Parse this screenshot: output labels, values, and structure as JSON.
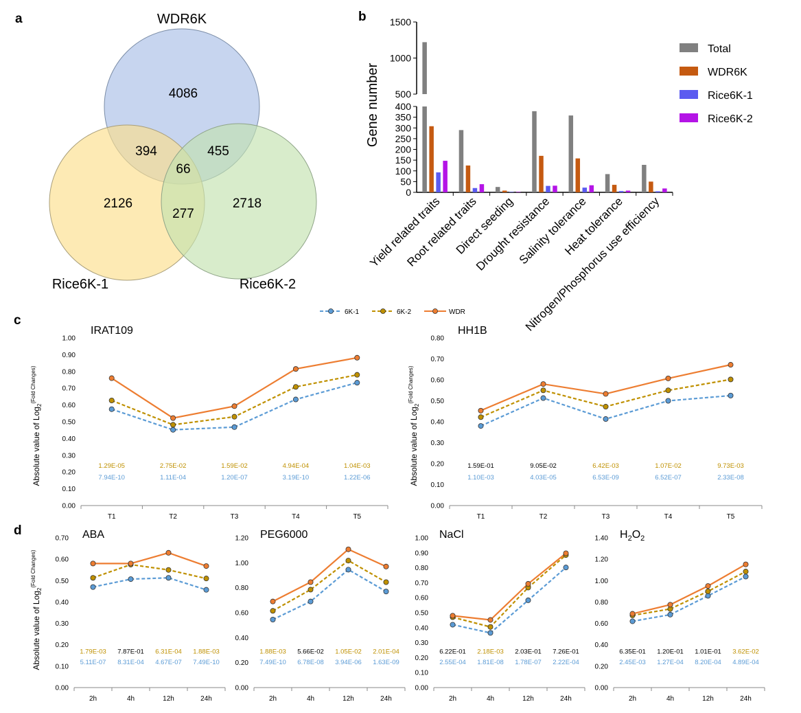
{
  "panel_labels": {
    "a": "a",
    "b": "b",
    "c": "c",
    "d": "d"
  },
  "colors": {
    "wdr": "#ED7D31",
    "k1": "#5B9BD5",
    "k2": "#BF9000",
    "total": "#808080",
    "wdr_bar": "#C55A11",
    "k1_bar": "#5B5BF0",
    "k2_bar": "#B414E6",
    "venn_wdr": "#A9BEE6",
    "venn_k1": "#FCDF8C",
    "venn_k2": "#C3E2AF"
  },
  "chart_data": [
    {
      "type": "venn",
      "panel": "a",
      "sets": [
        "WDR6K",
        "Rice6K-1",
        "Rice6K-2"
      ],
      "regions": {
        "WDR6K_only": "4086",
        "Rice6K1_only": "2126",
        "Rice6K2_only": "2718",
        "WDR6K_Rice6K1": "394",
        "WDR6K_Rice6K2": "455",
        "Rice6K1_Rice6K2": "277",
        "all": "66"
      }
    },
    {
      "type": "bar",
      "panel": "b",
      "ylabel": "Gene number",
      "categories": [
        "Yield related traits",
        "Root related traits",
        "Direct seeding",
        "Drought resistance",
        "Salinity tolerance",
        "Heat tolerance",
        "Nitrogen/Phosphorus use efficiency"
      ],
      "series": [
        {
          "name": "Total",
          "values": [
            1220,
            290,
            25,
            378,
            358,
            85,
            128
          ]
        },
        {
          "name": "WDR6K",
          "values": [
            308,
            125,
            8,
            170,
            158,
            35,
            50
          ]
        },
        {
          "name": "Rice6K-1",
          "values": [
            93,
            20,
            2,
            30,
            22,
            6,
            5
          ]
        },
        {
          "name": "Rice6K-2",
          "values": [
            147,
            38,
            2,
            31,
            33,
            8,
            18
          ]
        }
      ],
      "ylim_lower": [
        0,
        400
      ],
      "ylim_upper": [
        500,
        1500
      ],
      "yticks_lower": [
        "0",
        "50",
        "100",
        "150",
        "200",
        "250",
        "300",
        "350",
        "400"
      ],
      "yticks_upper": [
        "500",
        "1000",
        "1500"
      ]
    },
    {
      "type": "line",
      "panel": "c",
      "title": "IRAT109",
      "ylabel": "Absolute value of Log2(Fold Changes)",
      "categories": [
        "T1",
        "T2",
        "T3",
        "T4",
        "T5"
      ],
      "ylim": [
        0,
        1.0
      ],
      "yticks": [
        "0.00",
        "0.10",
        "0.20",
        "0.30",
        "0.40",
        "0.50",
        "0.60",
        "0.70",
        "0.80",
        "0.90",
        "1.00"
      ],
      "series": [
        {
          "name": "6K-1",
          "values": [
            0.575,
            0.452,
            0.468,
            0.633,
            0.733
          ]
        },
        {
          "name": "6K-2",
          "values": [
            0.627,
            0.482,
            0.53,
            0.708,
            0.78
          ]
        },
        {
          "name": "WDR",
          "values": [
            0.76,
            0.522,
            0.593,
            0.815,
            0.882
          ]
        }
      ],
      "pvalues_k2": [
        "1.29E-05",
        "2.75E-02",
        "1.59E-02",
        "4.94E-04",
        "1.04E-03"
      ],
      "pvalues_k2_colors": [
        "#BF9000",
        "#BF9000",
        "#BF9000",
        "#BF9000",
        "#BF9000"
      ],
      "pvalues_k1": [
        "7.94E-10",
        "1.11E-04",
        "1.20E-07",
        "3.19E-10",
        "1.22E-06"
      ]
    },
    {
      "type": "line",
      "panel": "c",
      "title": "HH1B",
      "ylabel": "Absolute value of Log2(Fold Changes)",
      "categories": [
        "T1",
        "T2",
        "T3",
        "T4",
        "T5"
      ],
      "ylim": [
        0,
        0.8
      ],
      "yticks": [
        "0.00",
        "0.10",
        "0.20",
        "0.30",
        "0.40",
        "0.50",
        "0.60",
        "0.70",
        "0.80"
      ],
      "series": [
        {
          "name": "6K-1",
          "values": [
            0.38,
            0.513,
            0.413,
            0.5,
            0.525
          ]
        },
        {
          "name": "6K-2",
          "values": [
            0.422,
            0.55,
            0.472,
            0.55,
            0.602
          ]
        },
        {
          "name": "WDR",
          "values": [
            0.453,
            0.58,
            0.533,
            0.607,
            0.672
          ]
        }
      ],
      "pvalues_k2": [
        "1.59E-01",
        "9.05E-02",
        "6.42E-03",
        "1.07E-02",
        "9.73E-03"
      ],
      "pvalues_k2_colors": [
        "#000000",
        "#000000",
        "#BF9000",
        "#BF9000",
        "#BF9000"
      ],
      "pvalues_k1": [
        "1.10E-03",
        "4.03E-05",
        "6.53E-09",
        "6.52E-07",
        "2.33E-08"
      ]
    },
    {
      "type": "line",
      "panel": "d",
      "title": "ABA",
      "ylabel": "Absolute value of Log2(Fold Changes)",
      "categories": [
        "2h",
        "4h",
        "12h",
        "24h"
      ],
      "ylim": [
        0,
        0.7
      ],
      "yticks": [
        "0.00",
        "0.10",
        "0.20",
        "0.30",
        "0.40",
        "0.50",
        "0.60",
        "0.70"
      ],
      "series": [
        {
          "name": "6K-1",
          "values": [
            0.47,
            0.507,
            0.513,
            0.457
          ]
        },
        {
          "name": "6K-2",
          "values": [
            0.513,
            0.575,
            0.55,
            0.51
          ]
        },
        {
          "name": "WDR",
          "values": [
            0.58,
            0.58,
            0.63,
            0.568
          ]
        }
      ],
      "pvalues_k2": [
        "1.79E-03",
        "7.87E-01",
        "6.31E-04",
        "1.88E-03"
      ],
      "pvalues_k2_colors": [
        "#BF9000",
        "#000000",
        "#BF9000",
        "#BF9000"
      ],
      "pvalues_k1": [
        "5.11E-07",
        "8.31E-04",
        "4.67E-07",
        "7.49E-10"
      ]
    },
    {
      "type": "line",
      "panel": "d",
      "title": "PEG6000",
      "categories": [
        "2h",
        "4h",
        "12h",
        "24h"
      ],
      "ylim": [
        0,
        1.2
      ],
      "yticks": [
        "0.00",
        "0.20",
        "0.40",
        "0.60",
        "0.80",
        "1.00",
        "1.20"
      ],
      "series": [
        {
          "name": "6K-1",
          "values": [
            0.545,
            0.69,
            0.945,
            0.77
          ]
        },
        {
          "name": "6K-2",
          "values": [
            0.615,
            0.785,
            1.018,
            0.845
          ]
        },
        {
          "name": "WDR",
          "values": [
            0.69,
            0.845,
            1.108,
            0.97
          ]
        }
      ],
      "pvalues_k2": [
        "1.88E-03",
        "5.66E-02",
        "1.05E-02",
        "2.01E-04"
      ],
      "pvalues_k2_colors": [
        "#BF9000",
        "#000000",
        "#BF9000",
        "#BF9000"
      ],
      "pvalues_k1": [
        "7.49E-10",
        "6.78E-08",
        "3.94E-06",
        "1.63E-09"
      ]
    },
    {
      "type": "line",
      "panel": "d",
      "title": "NaCl",
      "categories": [
        "2h",
        "4h",
        "12h",
        "24h"
      ],
      "ylim": [
        0,
        1.0
      ],
      "yticks": [
        "0.00",
        "0.10",
        "0.20",
        "0.30",
        "0.40",
        "0.50",
        "0.60",
        "0.70",
        "0.80",
        "0.90",
        "1.00"
      ],
      "series": [
        {
          "name": "6K-1",
          "values": [
            0.42,
            0.365,
            0.583,
            0.802
          ]
        },
        {
          "name": "6K-2",
          "values": [
            0.47,
            0.405,
            0.668,
            0.885
          ]
        },
        {
          "name": "WDR",
          "values": [
            0.48,
            0.452,
            0.693,
            0.897
          ]
        }
      ],
      "pvalues_k2": [
        "6.22E-01",
        "2.18E-03",
        "2.03E-01",
        "7.26E-01"
      ],
      "pvalues_k2_colors": [
        "#000000",
        "#BF9000",
        "#000000",
        "#000000"
      ],
      "pvalues_k1": [
        "2.55E-04",
        "1.81E-08",
        "1.78E-07",
        "2.22E-04"
      ]
    },
    {
      "type": "line",
      "panel": "d",
      "title": "H2O2",
      "title_main": "H",
      "title_sub1": "2",
      "title_mid": "O",
      "title_sub2": "2",
      "categories": [
        "2h",
        "4h",
        "12h",
        "24h"
      ],
      "ylim": [
        0,
        1.4
      ],
      "yticks": [
        "0.00",
        "0.20",
        "0.40",
        "0.60",
        "0.80",
        "1.00",
        "1.20",
        "1.40"
      ],
      "series": [
        {
          "name": "6K-1",
          "values": [
            0.62,
            0.682,
            0.858,
            1.038
          ]
        },
        {
          "name": "6K-2",
          "values": [
            0.675,
            0.735,
            0.9,
            1.085
          ]
        },
        {
          "name": "WDR",
          "values": [
            0.69,
            0.775,
            0.95,
            1.152
          ]
        }
      ],
      "pvalues_k2": [
        "6.35E-01",
        "1.20E-01",
        "1.01E-01",
        "3.62E-02"
      ],
      "pvalues_k2_colors": [
        "#000000",
        "#000000",
        "#000000",
        "#BF9000"
      ],
      "pvalues_k1": [
        "2.45E-03",
        "1.27E-04",
        "8.20E-04",
        "4.89E-04"
      ]
    }
  ],
  "legend_lines": [
    "6K-1",
    "6K-2",
    "WDR"
  ],
  "ylabel_parts": {
    "main": "Absolute value of Log",
    "sub": "2",
    "sup": "(Fold Changes)"
  }
}
